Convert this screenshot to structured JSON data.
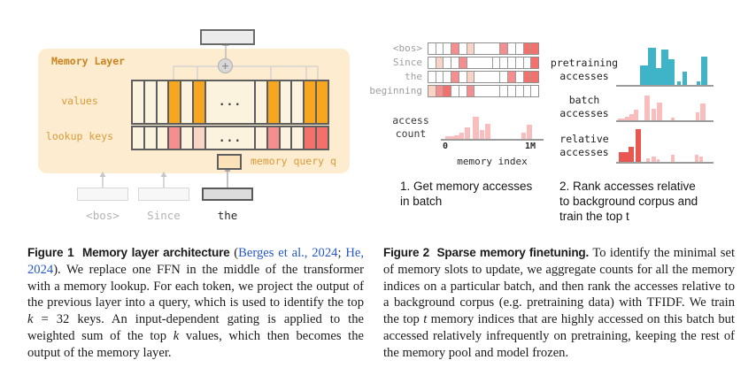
{
  "colors": {
    "panel_bg": "#FDECCF",
    "cream": "#FCF3DF",
    "orange": "#F7A71F",
    "pink": "#F58F8F",
    "light_pink": "#F9D3C6",
    "red": "#F4706A",
    "teal": "#3FB3C7",
    "pink_bar": "#F9BDBD",
    "red_bar": "#E85850",
    "title_orange": "#C9831E",
    "label_orange": "#DA9A3B",
    "cite_blue": "#2557C7"
  },
  "figure1": {
    "memory_layer_label": "Memory Layer",
    "values_label": "values",
    "lookup_keys_label": "lookup keys",
    "memory_query_label": "memory query q",
    "dots": "...",
    "plus": "+",
    "values_cells": [
      "c",
      "c",
      "c",
      "o",
      "c",
      "o",
      "d",
      "c",
      "o",
      "c",
      "c",
      "o",
      "o"
    ],
    "lookup_cells": [
      "c",
      "c",
      "c",
      "p",
      "c",
      "lp",
      "d",
      "c",
      "p",
      "c",
      "c",
      "r",
      "r"
    ],
    "tokens": [
      {
        "label": "<bos>",
        "active": false
      },
      {
        "label": "Since",
        "active": false
      },
      {
        "label": "the",
        "active": true
      }
    ]
  },
  "figure2": {
    "rows": [
      {
        "label": "<bos>",
        "cells": [
          "w",
          "w",
          "w",
          "p",
          "w",
          "lp",
          "g",
          "p",
          "w",
          "w",
          "r",
          "r"
        ]
      },
      {
        "label": "Since",
        "cells": [
          "w",
          "lp",
          "w",
          "w",
          "p",
          "g",
          "w",
          "w",
          "w",
          "w",
          "w",
          "r"
        ]
      },
      {
        "label": "the",
        "cells": [
          "w",
          "w",
          "w",
          "p",
          "w",
          "lp",
          "g",
          "w",
          "p",
          "w",
          "r",
          "r"
        ]
      },
      {
        "label": "beginning",
        "cells": [
          "lp",
          "p",
          "r",
          "w",
          "w",
          "p",
          "g",
          "w",
          "w",
          "w",
          "w",
          "w"
        ]
      }
    ],
    "access_chart": {
      "ylabel_lines": [
        "access",
        "count"
      ],
      "xtick_left": "0",
      "xtick_right": "1M",
      "xlabel": "memory index",
      "bars": [
        {
          "x": 3,
          "w": 10,
          "h": 3
        },
        {
          "x": 13,
          "w": 6,
          "h": 4
        },
        {
          "x": 19,
          "w": 5,
          "h": 7
        },
        {
          "x": 25,
          "w": 6,
          "h": 13
        },
        {
          "x": 34,
          "w": 7,
          "h": 25
        },
        {
          "x": 42,
          "w": 5,
          "h": 10
        },
        {
          "x": 48,
          "w": 6,
          "h": 17
        },
        {
          "x": 89,
          "w": 5,
          "h": 7
        },
        {
          "x": 95,
          "w": 6,
          "h": 16
        }
      ]
    },
    "side_charts": [
      {
        "label_lines": [
          "pretraining",
          "accesses"
        ],
        "color_key": "teal",
        "bars": [
          {
            "x": 26,
            "w": 9,
            "h": 22
          },
          {
            "x": 35,
            "w": 9,
            "h": 42
          },
          {
            "x": 44,
            "w": 6,
            "h": 19
          },
          {
            "x": 50,
            "w": 8,
            "h": 40
          },
          {
            "x": 58,
            "w": 7,
            "h": 29
          },
          {
            "x": 68,
            "w": 4,
            "h": 4
          },
          {
            "x": 74,
            "w": 5,
            "h": 15
          },
          {
            "x": 90,
            "w": 4,
            "h": 4
          },
          {
            "x": 95,
            "w": 7,
            "h": 32
          }
        ]
      },
      {
        "label_lines": [
          "batch",
          "accesses"
        ],
        "color_key": "pink_bar",
        "bars": [
          {
            "x": 1,
            "w": 8,
            "h": 2
          },
          {
            "x": 9,
            "w": 6,
            "h": 4
          },
          {
            "x": 14,
            "w": 5,
            "h": 7
          },
          {
            "x": 19,
            "w": 5,
            "h": 12
          },
          {
            "x": 31,
            "w": 6,
            "h": 28
          },
          {
            "x": 39,
            "w": 5,
            "h": 13
          },
          {
            "x": 45,
            "w": 6,
            "h": 20
          },
          {
            "x": 61,
            "w": 4,
            "h": 3
          },
          {
            "x": 89,
            "w": 4,
            "h": 9
          },
          {
            "x": 94,
            "w": 6,
            "h": 19
          }
        ]
      },
      {
        "label_lines": [
          "relative",
          "accesses"
        ],
        "color_key": "pink_bar",
        "bars": [
          {
            "x": 2,
            "w": 11,
            "h": 11,
            "strong": true
          },
          {
            "x": 13,
            "w": 6,
            "h": 17,
            "strong": true
          },
          {
            "x": 21,
            "w": 6,
            "h": 37,
            "strong": true
          },
          {
            "x": 33,
            "w": 4,
            "h": 4
          },
          {
            "x": 39,
            "w": 5,
            "h": 6
          },
          {
            "x": 45,
            "w": 3,
            "h": 3
          },
          {
            "x": 61,
            "w": 4,
            "h": 8
          },
          {
            "x": 88,
            "w": 4,
            "h": 8
          },
          {
            "x": 93,
            "w": 4,
            "h": 6
          }
        ]
      }
    ],
    "step1_lines": [
      "1. Get memory accesses",
      "in batch"
    ],
    "step2_lines": [
      "2. Rank accesses relative",
      "to background corpus and",
      "train the top t"
    ]
  },
  "captions": {
    "fig1_segments": [
      {
        "t": "Figure 1  Memory layer architecture ",
        "s": "head"
      },
      {
        "t": "(",
        "s": "n"
      },
      {
        "t": "Berges et al., 2024",
        "s": "cite"
      },
      {
        "t": "; ",
        "s": "n"
      },
      {
        "t": "He, 2024",
        "s": "cite"
      },
      {
        "t": "). We replace one FFN in the middle of the transformer with a memory lookup. For each token, we project the output of the previous layer into a query, which is used to identify the top ",
        "s": "n"
      },
      {
        "t": "k",
        "s": "i"
      },
      {
        "t": " = 32 keys. An input-dependent gating is applied to the weighted sum of the top ",
        "s": "n"
      },
      {
        "t": "k",
        "s": "i"
      },
      {
        "t": " values, which then becomes the output of the memory layer.",
        "s": "n"
      }
    ],
    "fig2_segments": [
      {
        "t": "Figure 2  Sparse memory finetuning. ",
        "s": "head"
      },
      {
        "t": "To identify the minimal set of memory slots to update, we aggregate counts for all the memory indices on a particular batch, and then rank the accesses relative to a background corpus (e.g. pretraining data) with TFIDF. We train the top ",
        "s": "n"
      },
      {
        "t": "t",
        "s": "i"
      },
      {
        "t": " memory indices that are highly accessed on this batch but accessed relatively infrequently on pretraining, keeping the rest of the memory pool and model frozen.",
        "s": "n"
      }
    ]
  }
}
